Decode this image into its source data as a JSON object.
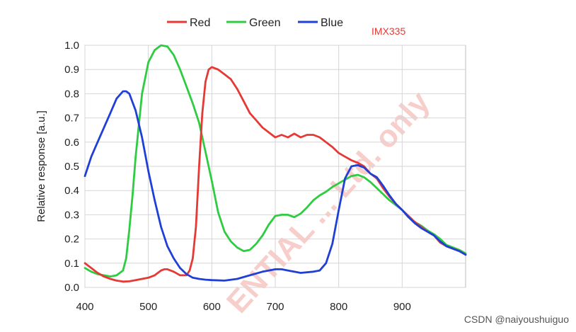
{
  "chart_data": {
    "type": "line",
    "title": "",
    "xlabel": "",
    "ylabel": "Relative response [a.u.]",
    "xlim": [
      400,
      1000
    ],
    "ylim": [
      0,
      1.0
    ],
    "x_ticks": [
      "400",
      "500",
      "600",
      "700",
      "800",
      "900"
    ],
    "y_ticks": [
      "0.0",
      "0.1",
      "0.2",
      "0.3",
      "0.4",
      "0.5",
      "0.6",
      "0.7",
      "0.8",
      "0.9",
      "1.0"
    ],
    "grid": true,
    "legend_position": "top-center",
    "annotation": "IMX335",
    "watermark": "ENTIAL ... Ltd. only",
    "series": [
      {
        "name": "Red",
        "color": "#e53935",
        "points": [
          [
            400,
            0.1
          ],
          [
            410,
            0.08
          ],
          [
            420,
            0.06
          ],
          [
            430,
            0.045
          ],
          [
            440,
            0.035
          ],
          [
            450,
            0.028
          ],
          [
            460,
            0.024
          ],
          [
            470,
            0.025
          ],
          [
            480,
            0.03
          ],
          [
            490,
            0.035
          ],
          [
            500,
            0.04
          ],
          [
            510,
            0.05
          ],
          [
            520,
            0.07
          ],
          [
            525,
            0.075
          ],
          [
            530,
            0.075
          ],
          [
            540,
            0.065
          ],
          [
            550,
            0.05
          ],
          [
            560,
            0.05
          ],
          [
            565,
            0.07
          ],
          [
            570,
            0.12
          ],
          [
            575,
            0.25
          ],
          [
            580,
            0.5
          ],
          [
            585,
            0.72
          ],
          [
            590,
            0.85
          ],
          [
            595,
            0.9
          ],
          [
            600,
            0.91
          ],
          [
            610,
            0.9
          ],
          [
            620,
            0.88
          ],
          [
            630,
            0.86
          ],
          [
            640,
            0.82
          ],
          [
            650,
            0.77
          ],
          [
            660,
            0.72
          ],
          [
            670,
            0.69
          ],
          [
            680,
            0.66
          ],
          [
            690,
            0.64
          ],
          [
            700,
            0.62
          ],
          [
            710,
            0.63
          ],
          [
            720,
            0.62
          ],
          [
            730,
            0.635
          ],
          [
            740,
            0.62
          ],
          [
            750,
            0.63
          ],
          [
            760,
            0.63
          ],
          [
            770,
            0.62
          ],
          [
            780,
            0.6
          ],
          [
            790,
            0.58
          ],
          [
            800,
            0.555
          ],
          [
            810,
            0.54
          ],
          [
            820,
            0.525
          ],
          [
            830,
            0.515
          ],
          [
            840,
            0.5
          ],
          [
            850,
            0.47
          ],
          [
            860,
            0.45
          ],
          [
            870,
            0.41
          ],
          [
            880,
            0.375
          ],
          [
            890,
            0.345
          ],
          [
            900,
            0.32
          ],
          [
            910,
            0.295
          ],
          [
            920,
            0.27
          ],
          [
            930,
            0.25
          ],
          [
            940,
            0.23
          ],
          [
            950,
            0.215
          ],
          [
            960,
            0.185
          ],
          [
            970,
            0.17
          ],
          [
            980,
            0.16
          ],
          [
            990,
            0.15
          ],
          [
            1000,
            0.135
          ]
        ]
      },
      {
        "name": "Green",
        "color": "#2ecc40",
        "points": [
          [
            400,
            0.08
          ],
          [
            410,
            0.065
          ],
          [
            420,
            0.055
          ],
          [
            430,
            0.05
          ],
          [
            440,
            0.045
          ],
          [
            450,
            0.05
          ],
          [
            460,
            0.07
          ],
          [
            465,
            0.12
          ],
          [
            470,
            0.24
          ],
          [
            475,
            0.38
          ],
          [
            480,
            0.54
          ],
          [
            490,
            0.8
          ],
          [
            500,
            0.93
          ],
          [
            510,
            0.98
          ],
          [
            520,
            1.0
          ],
          [
            530,
            0.995
          ],
          [
            540,
            0.96
          ],
          [
            550,
            0.9
          ],
          [
            560,
            0.83
          ],
          [
            570,
            0.76
          ],
          [
            580,
            0.68
          ],
          [
            590,
            0.56
          ],
          [
            600,
            0.44
          ],
          [
            610,
            0.31
          ],
          [
            620,
            0.23
          ],
          [
            630,
            0.19
          ],
          [
            640,
            0.165
          ],
          [
            650,
            0.15
          ],
          [
            660,
            0.155
          ],
          [
            670,
            0.18
          ],
          [
            680,
            0.215
          ],
          [
            690,
            0.26
          ],
          [
            700,
            0.295
          ],
          [
            710,
            0.3
          ],
          [
            720,
            0.3
          ],
          [
            730,
            0.29
          ],
          [
            740,
            0.305
          ],
          [
            750,
            0.33
          ],
          [
            760,
            0.36
          ],
          [
            770,
            0.38
          ],
          [
            780,
            0.395
          ],
          [
            790,
            0.415
          ],
          [
            800,
            0.43
          ],
          [
            810,
            0.445
          ],
          [
            820,
            0.46
          ],
          [
            830,
            0.465
          ],
          [
            840,
            0.455
          ],
          [
            850,
            0.435
          ],
          [
            860,
            0.41
          ],
          [
            870,
            0.385
          ],
          [
            880,
            0.36
          ],
          [
            890,
            0.34
          ],
          [
            900,
            0.32
          ],
          [
            910,
            0.29
          ],
          [
            920,
            0.27
          ],
          [
            930,
            0.255
          ],
          [
            940,
            0.235
          ],
          [
            950,
            0.22
          ],
          [
            960,
            0.2
          ],
          [
            970,
            0.175
          ],
          [
            980,
            0.165
          ],
          [
            990,
            0.155
          ],
          [
            1000,
            0.14
          ]
        ]
      },
      {
        "name": "Blue",
        "color": "#1f3fd6",
        "points": [
          [
            400,
            0.46
          ],
          [
            410,
            0.54
          ],
          [
            420,
            0.6
          ],
          [
            430,
            0.66
          ],
          [
            440,
            0.72
          ],
          [
            450,
            0.78
          ],
          [
            460,
            0.81
          ],
          [
            465,
            0.81
          ],
          [
            470,
            0.8
          ],
          [
            480,
            0.73
          ],
          [
            490,
            0.62
          ],
          [
            500,
            0.48
          ],
          [
            510,
            0.36
          ],
          [
            520,
            0.25
          ],
          [
            530,
            0.17
          ],
          [
            540,
            0.12
          ],
          [
            550,
            0.08
          ],
          [
            560,
            0.055
          ],
          [
            570,
            0.04
          ],
          [
            580,
            0.035
          ],
          [
            590,
            0.032
          ],
          [
            600,
            0.03
          ],
          [
            620,
            0.028
          ],
          [
            640,
            0.035
          ],
          [
            660,
            0.05
          ],
          [
            680,
            0.065
          ],
          [
            700,
            0.075
          ],
          [
            710,
            0.075
          ],
          [
            720,
            0.07
          ],
          [
            740,
            0.06
          ],
          [
            760,
            0.065
          ],
          [
            770,
            0.07
          ],
          [
            780,
            0.1
          ],
          [
            790,
            0.18
          ],
          [
            800,
            0.32
          ],
          [
            810,
            0.45
          ],
          [
            820,
            0.5
          ],
          [
            830,
            0.505
          ],
          [
            840,
            0.495
          ],
          [
            850,
            0.47
          ],
          [
            860,
            0.455
          ],
          [
            870,
            0.42
          ],
          [
            880,
            0.38
          ],
          [
            890,
            0.345
          ],
          [
            900,
            0.32
          ],
          [
            910,
            0.29
          ],
          [
            920,
            0.265
          ],
          [
            930,
            0.245
          ],
          [
            940,
            0.23
          ],
          [
            950,
            0.215
          ],
          [
            960,
            0.19
          ],
          [
            970,
            0.17
          ],
          [
            980,
            0.16
          ],
          [
            990,
            0.15
          ],
          [
            1000,
            0.135
          ]
        ]
      }
    ]
  },
  "credit": "CSDN @naiyoushuiguo"
}
